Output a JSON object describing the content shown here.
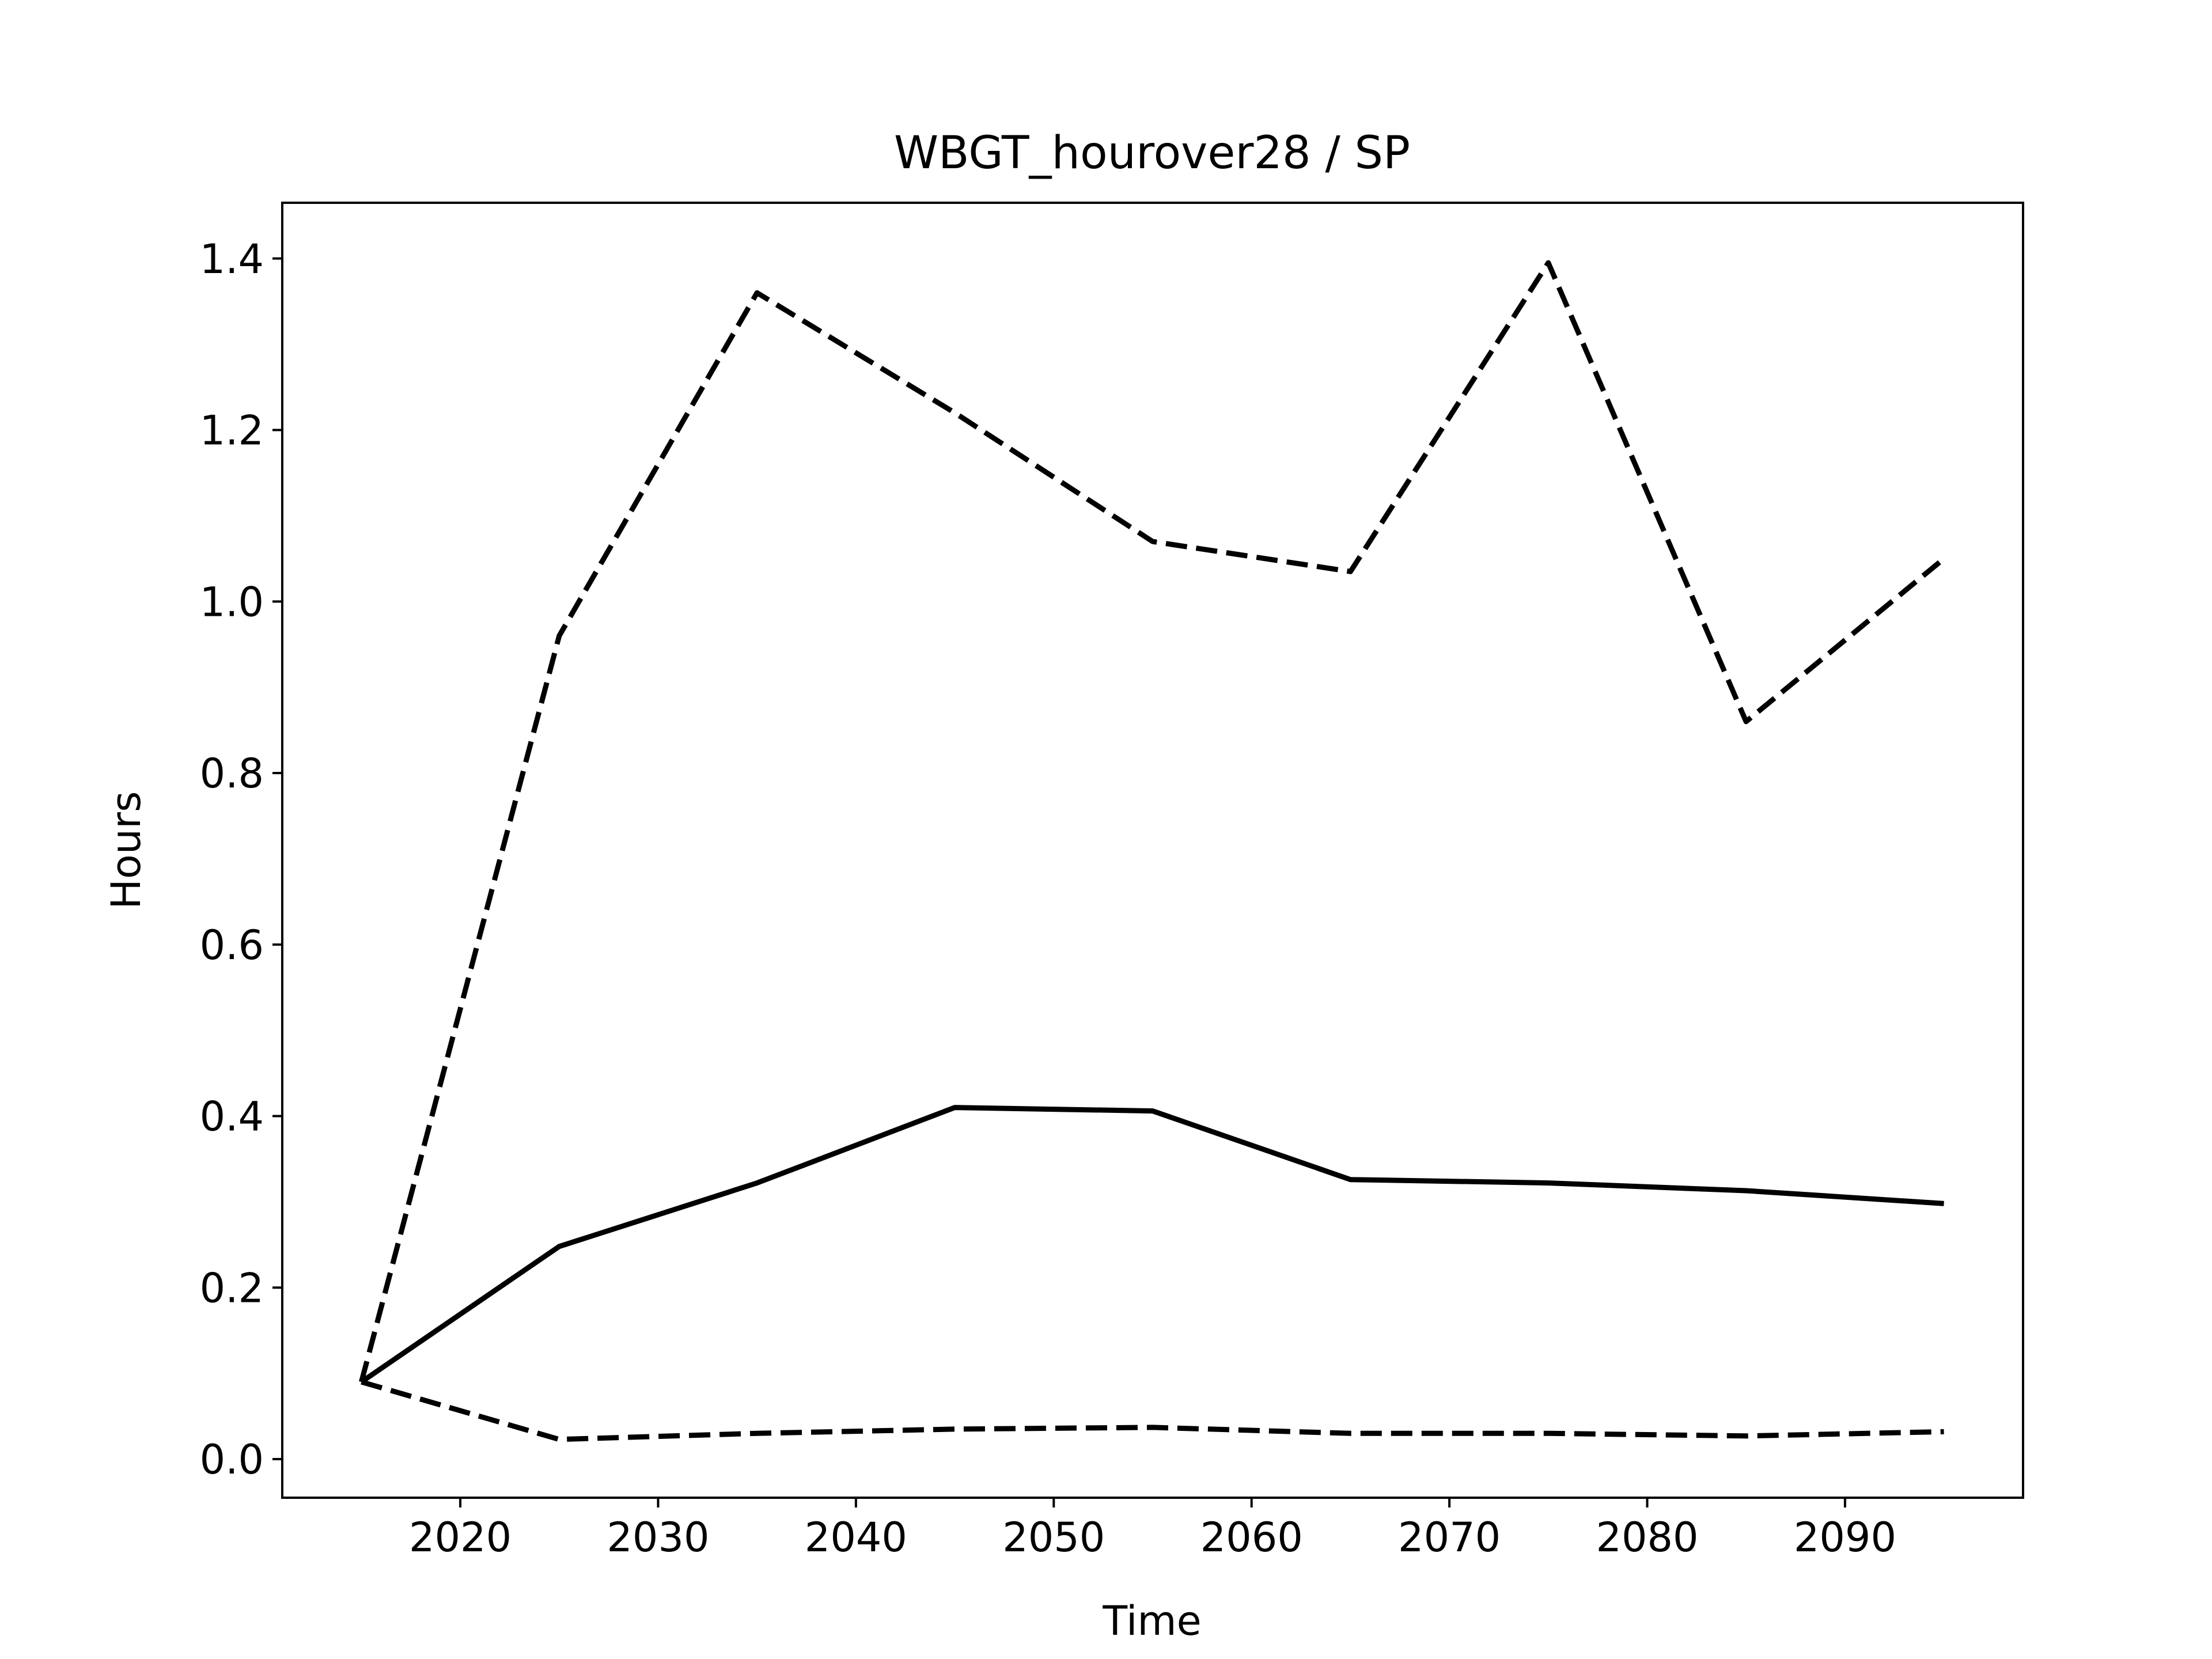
{
  "chart_data": {
    "type": "line",
    "title": "WBGT_hourover28 / SP",
    "xlabel": "Time",
    "ylabel": "Hours",
    "x": [
      2015,
      2025,
      2035,
      2045,
      2055,
      2065,
      2075,
      2085,
      2095
    ],
    "xlim": [
      2011,
      2099
    ],
    "ylim": [
      -0.045,
      1.465
    ],
    "xticks": [
      2020,
      2030,
      2040,
      2050,
      2060,
      2070,
      2080,
      2090
    ],
    "xtick_labels": [
      "2020",
      "2030",
      "2040",
      "2050",
      "2060",
      "2070",
      "2080",
      "2090"
    ],
    "yticks": [
      0.0,
      0.2,
      0.4,
      0.6,
      0.8,
      1.0,
      1.2,
      1.4
    ],
    "ytick_labels": [
      "0.0",
      "0.2",
      "0.4",
      "0.6",
      "0.8",
      "1.0",
      "1.2",
      "1.4"
    ],
    "grid": false,
    "legend": "none",
    "colors": {
      "line": "#000000",
      "frame": "#000000",
      "background": "#ffffff"
    },
    "series": [
      {
        "style": "dashed",
        "values": [
          0.09,
          0.96,
          1.36,
          1.22,
          1.07,
          1.035,
          1.395,
          0.86,
          1.05
        ]
      },
      {
        "style": "solid",
        "values": [
          0.09,
          0.248,
          0.322,
          0.41,
          0.406,
          0.326,
          0.322,
          0.313,
          0.298
        ]
      },
      {
        "style": "dashed",
        "values": [
          0.09,
          0.023,
          0.03,
          0.035,
          0.037,
          0.03,
          0.03,
          0.027,
          0.032
        ]
      }
    ]
  }
}
